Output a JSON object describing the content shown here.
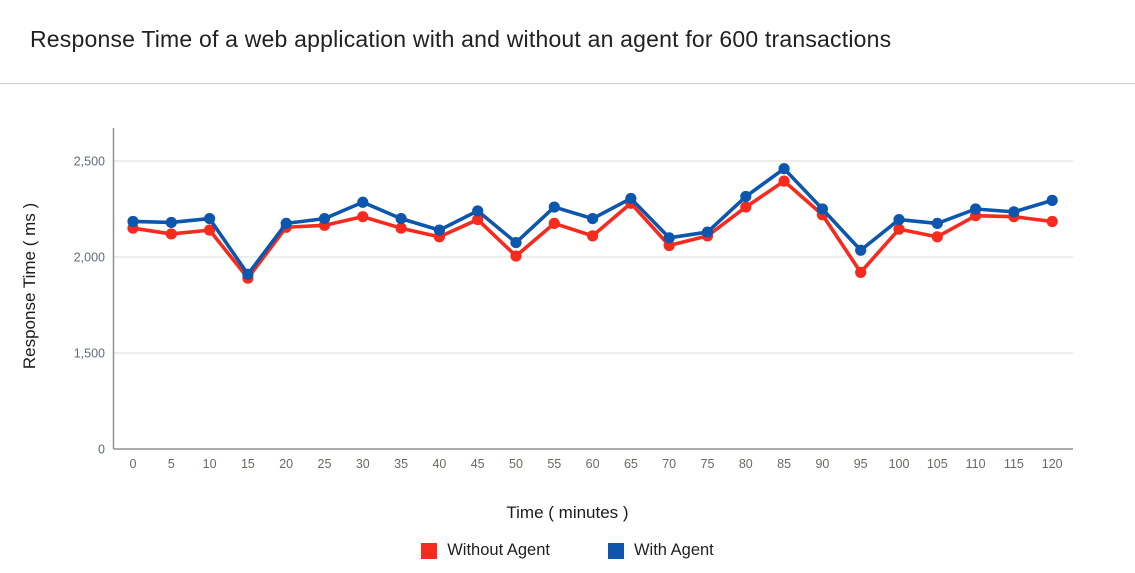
{
  "header": {
    "title": "Response Time of a web application with and without an agent for 600 transactions"
  },
  "chart_data": {
    "type": "line",
    "title": "Response Time of a web application with and without an agent for 600 transactions",
    "xlabel": "Time ( minutes )",
    "ylabel": "Response Time ( ms )",
    "x": [
      0,
      5,
      10,
      15,
      20,
      25,
      30,
      35,
      40,
      45,
      50,
      55,
      60,
      65,
      70,
      75,
      80,
      85,
      90,
      95,
      100,
      105,
      110,
      115,
      120
    ],
    "y_ticks": [
      0,
      1500,
      2000,
      2500
    ],
    "y_tick_labels": [
      "0",
      "1,500",
      "2,000",
      "2,500"
    ],
    "y_axis_note": "tick marks evenly spaced (axis compressed below 1,500)",
    "grid": "horizontal",
    "legend_position": "bottom",
    "marker": "circle",
    "series": [
      {
        "name": "Without Agent",
        "color": "#f72b1d",
        "values": [
          2150,
          2120,
          2140,
          1890,
          2155,
          2165,
          2210,
          2150,
          2105,
          2195,
          2005,
          2175,
          2110,
          2280,
          2060,
          2110,
          2260,
          2395,
          2220,
          1920,
          2145,
          2105,
          2215,
          2210,
          2185
        ]
      },
      {
        "name": "With Agent",
        "color": "#0d56ae",
        "values": [
          2185,
          2180,
          2200,
          1910,
          2175,
          2200,
          2285,
          2200,
          2140,
          2240,
          2075,
          2260,
          2200,
          2305,
          2100,
          2130,
          2315,
          2460,
          2250,
          2035,
          2195,
          2175,
          2250,
          2235,
          2295
        ]
      }
    ],
    "colors": {
      "gridline": "#e2e2e2",
      "axis_line": "#8f8f8f",
      "y_tick_text": "#5f6d79",
      "x_tick_text": "#6e675f"
    }
  }
}
